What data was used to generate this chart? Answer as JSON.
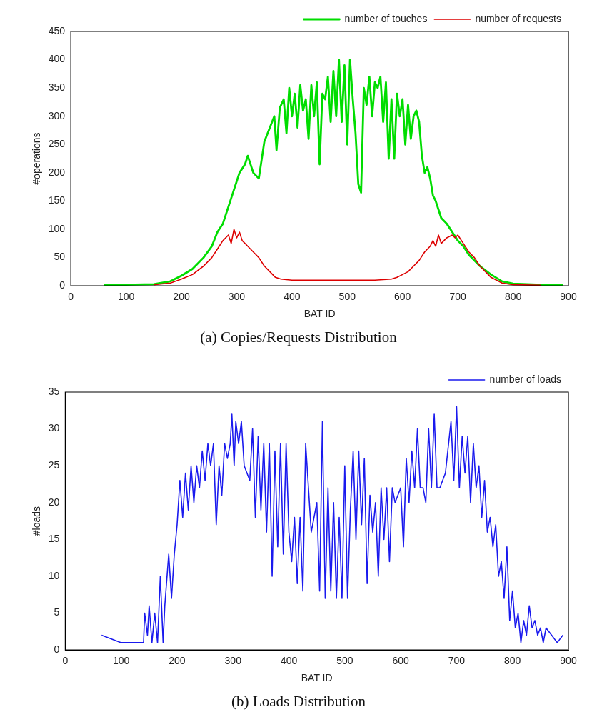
{
  "chart_data": [
    {
      "type": "line",
      "title": "(a) Copies/Requests Distribution",
      "xlabel": "BAT ID",
      "ylabel": "#operations",
      "xlim": [
        0,
        900
      ],
      "xticks": [
        0,
        100,
        200,
        300,
        400,
        500,
        600,
        700,
        800,
        900
      ],
      "ylim": [
        0,
        450
      ],
      "yticks": [
        0,
        50,
        100,
        150,
        200,
        250,
        300,
        350,
        400,
        450
      ],
      "grid": false,
      "legend": "top right",
      "series": [
        {
          "name": "number of touches",
          "color": "#00dd00",
          "x": [
            60,
            100,
            150,
            180,
            200,
            220,
            240,
            255,
            265,
            275,
            285,
            295,
            305,
            315,
            320,
            330,
            340,
            350,
            360,
            368,
            372,
            378,
            385,
            390,
            395,
            400,
            405,
            410,
            415,
            420,
            425,
            430,
            435,
            440,
            445,
            450,
            455,
            460,
            465,
            470,
            475,
            480,
            485,
            490,
            495,
            500,
            505,
            510,
            515,
            520,
            525,
            530,
            535,
            540,
            545,
            550,
            555,
            560,
            565,
            570,
            575,
            580,
            585,
            590,
            595,
            600,
            605,
            610,
            615,
            620,
            625,
            630,
            635,
            640,
            645,
            650,
            655,
            660,
            670,
            680,
            690,
            700,
            710,
            720,
            740,
            760,
            780,
            800,
            850,
            890
          ],
          "values": [
            1,
            2,
            3,
            8,
            18,
            30,
            50,
            70,
            95,
            110,
            140,
            170,
            200,
            215,
            230,
            200,
            190,
            255,
            280,
            300,
            240,
            315,
            330,
            270,
            350,
            300,
            340,
            280,
            355,
            310,
            330,
            260,
            355,
            300,
            360,
            215,
            340,
            330,
            370,
            290,
            380,
            300,
            400,
            290,
            390,
            250,
            400,
            330,
            270,
            180,
            165,
            350,
            320,
            370,
            300,
            360,
            350,
            370,
            290,
            360,
            225,
            330,
            225,
            340,
            300,
            330,
            250,
            320,
            260,
            300,
            310,
            290,
            230,
            200,
            210,
            190,
            160,
            150,
            120,
            110,
            95,
            80,
            70,
            55,
            35,
            20,
            8,
            4,
            2,
            1
          ]
        },
        {
          "name": "number of requests",
          "color": "#dd0000",
          "x": [
            150,
            180,
            200,
            220,
            240,
            255,
            265,
            275,
            285,
            290,
            295,
            300,
            305,
            310,
            320,
            330,
            340,
            350,
            360,
            370,
            380,
            400,
            450,
            500,
            550,
            580,
            590,
            600,
            610,
            620,
            630,
            640,
            650,
            655,
            660,
            665,
            670,
            680,
            690,
            695,
            700,
            710,
            720,
            730,
            740,
            750,
            760,
            780,
            800,
            850
          ],
          "values": [
            2,
            5,
            12,
            20,
            35,
            50,
            65,
            80,
            90,
            75,
            100,
            85,
            95,
            80,
            70,
            60,
            50,
            35,
            25,
            15,
            12,
            10,
            10,
            10,
            10,
            12,
            15,
            20,
            25,
            35,
            45,
            60,
            70,
            80,
            70,
            90,
            75,
            85,
            90,
            85,
            90,
            75,
            60,
            50,
            35,
            25,
            15,
            5,
            2,
            1
          ]
        }
      ]
    },
    {
      "type": "line",
      "title": "(b) Loads Distribution",
      "xlabel": "BAT ID",
      "ylabel": "#loads",
      "xlim": [
        0,
        900
      ],
      "xticks": [
        0,
        100,
        200,
        300,
        400,
        500,
        600,
        700,
        800,
        900
      ],
      "ylim": [
        0,
        35
      ],
      "yticks": [
        0,
        5,
        10,
        15,
        20,
        25,
        30,
        35
      ],
      "grid": false,
      "legend": "top right",
      "series": [
        {
          "name": "number of loads",
          "color": "#1a1aee",
          "x": [
            65,
            100,
            140,
            142,
            147,
            150,
            155,
            160,
            165,
            170,
            175,
            178,
            185,
            190,
            195,
            200,
            205,
            210,
            215,
            220,
            225,
            230,
            235,
            240,
            245,
            250,
            255,
            260,
            265,
            270,
            275,
            280,
            285,
            290,
            295,
            298,
            302,
            305,
            310,
            315,
            320,
            330,
            335,
            340,
            345,
            350,
            355,
            360,
            365,
            370,
            375,
            380,
            385,
            390,
            395,
            400,
            405,
            410,
            415,
            420,
            425,
            430,
            440,
            450,
            455,
            460,
            465,
            470,
            475,
            480,
            485,
            490,
            495,
            500,
            505,
            510,
            515,
            520,
            525,
            530,
            535,
            540,
            545,
            550,
            555,
            560,
            565,
            570,
            575,
            580,
            585,
            590,
            600,
            605,
            610,
            615,
            620,
            625,
            630,
            635,
            640,
            645,
            650,
            655,
            660,
            665,
            670,
            680,
            690,
            695,
            700,
            705,
            710,
            715,
            720,
            725,
            730,
            735,
            740,
            745,
            750,
            755,
            760,
            765,
            770,
            775,
            780,
            785,
            790,
            795,
            800,
            805,
            810,
            815,
            820,
            825,
            830,
            835,
            840,
            845,
            850,
            855,
            860,
            870,
            880,
            890
          ],
          "values": [
            2,
            1,
            1,
            5,
            2,
            6,
            1,
            5,
            1,
            10,
            1,
            6,
            13,
            7,
            13,
            17,
            23,
            18,
            24,
            19,
            25,
            20,
            25,
            22,
            27,
            23,
            28,
            25,
            28,
            17,
            25,
            21,
            28,
            26,
            28,
            32,
            25,
            31,
            28,
            31,
            25,
            23,
            30,
            18,
            29,
            19,
            28,
            16,
            28,
            10,
            27,
            14,
            28,
            13,
            28,
            16,
            12,
            18,
            9,
            18,
            8,
            28,
            16,
            20,
            8,
            31,
            7,
            22,
            8,
            20,
            7,
            18,
            7,
            25,
            7,
            19,
            27,
            15,
            27,
            17,
            26,
            9,
            21,
            16,
            20,
            10,
            22,
            15,
            22,
            12,
            22,
            20,
            22,
            14,
            26,
            20,
            27,
            22,
            30,
            22,
            22,
            20,
            30,
            22,
            32,
            22,
            22,
            24,
            31,
            23,
            33,
            22,
            29,
            24,
            29,
            20,
            28,
            22,
            25,
            18,
            23,
            16,
            18,
            14,
            17,
            10,
            12,
            7,
            14,
            4,
            8,
            3,
            5,
            1,
            4,
            2,
            6,
            3,
            4,
            2,
            3,
            1,
            3,
            2,
            1,
            2
          ]
        }
      ]
    }
  ]
}
